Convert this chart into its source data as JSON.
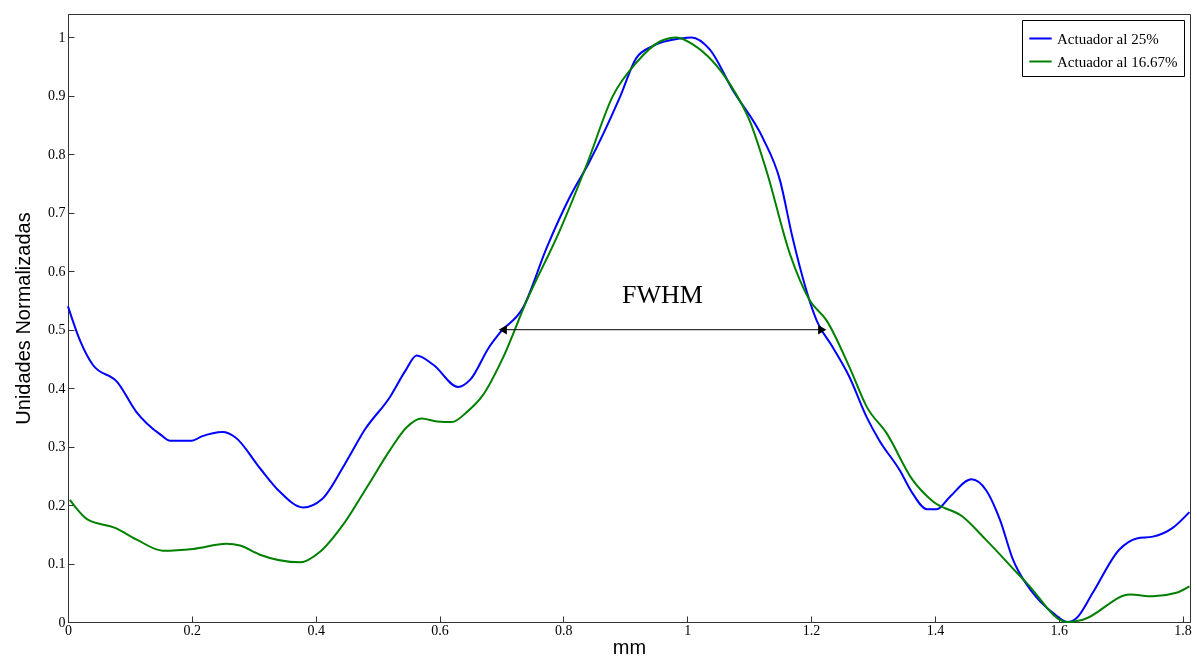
{
  "chart_data": {
    "type": "line",
    "xlabel": "mm",
    "ylabel": "Unidades Normalizadas",
    "annotations": [
      "FWHM"
    ],
    "xlim": [
      0,
      1.812
    ],
    "ylim": [
      0,
      1.04
    ],
    "xticks": [
      0,
      0.2,
      0.4,
      0.6,
      0.8,
      1,
      1.2,
      1.4,
      1.6,
      1.8
    ],
    "yticks": [
      0,
      0.1,
      0.2,
      0.3,
      0.4,
      0.5,
      0.6,
      0.7,
      0.8,
      0.9,
      1
    ],
    "grid": false,
    "legend": "top right",
    "marker": "none",
    "line_style": "solid",
    "series": [
      {
        "name": "Actuador al 25%",
        "color": "#0000ff",
        "x": [
          0,
          0.02,
          0.04,
          0.08,
          0.11,
          0.15,
          0.165,
          0.2,
          0.215,
          0.25,
          0.27,
          0.31,
          0.34,
          0.38,
          0.41,
          0.447,
          0.48,
          0.52,
          0.545,
          0.563,
          0.59,
          0.63,
          0.65,
          0.68,
          0.697,
          0.735,
          0.773,
          0.81,
          0.843,
          0.891,
          0.918,
          0.944,
          0.988,
          1.007,
          1.036,
          1.074,
          1.122,
          1.15,
          1.17,
          1.209,
          1.235,
          1.262,
          1.29,
          1.31,
          1.343,
          1.364,
          1.387,
          1.403,
          1.424,
          1.459,
          1.483,
          1.505,
          1.526,
          1.558,
          1.59,
          1.614,
          1.629,
          1.655,
          1.698,
          1.726,
          1.752,
          1.784,
          1.811
        ],
        "values": [
          0.54,
          0.48,
          0.44,
          0.41,
          0.36,
          0.32,
          0.31,
          0.31,
          0.317,
          0.325,
          0.316,
          0.263,
          0.225,
          0.196,
          0.21,
          0.27,
          0.33,
          0.385,
          0.43,
          0.456,
          0.44,
          0.402,
          0.415,
          0.47,
          0.494,
          0.538,
          0.64,
          0.726,
          0.789,
          0.897,
          0.965,
          0.985,
          0.998,
          1.0,
          0.98,
          0.909,
          0.828,
          0.755,
          0.658,
          0.516,
          0.47,
          0.419,
          0.35,
          0.311,
          0.26,
          0.22,
          0.193,
          0.193,
          0.214,
          0.244,
          0.225,
          0.175,
          0.107,
          0.05,
          0.016,
          0.0,
          0.007,
          0.05,
          0.124,
          0.143,
          0.146,
          0.161,
          0.188
        ]
      },
      {
        "name": "Actuador al 16.67%",
        "color": "#008000",
        "x": [
          0.003,
          0.032,
          0.076,
          0.111,
          0.153,
          0.202,
          0.256,
          0.278,
          0.31,
          0.375,
          0.407,
          0.444,
          0.483,
          0.52,
          0.547,
          0.571,
          0.596,
          0.62,
          0.644,
          0.67,
          0.702,
          0.741,
          0.794,
          0.838,
          0.88,
          0.918,
          0.956,
          0.983,
          1.009,
          1.069,
          1.101,
          1.128,
          1.166,
          1.198,
          1.225,
          1.262,
          1.29,
          1.322,
          1.364,
          1.397,
          1.445,
          1.483,
          1.548,
          1.613,
          1.639,
          1.715,
          1.752,
          1.79,
          1.811
        ],
        "values": [
          0.209,
          0.175,
          0.161,
          0.141,
          0.122,
          0.125,
          0.134,
          0.131,
          0.115,
          0.102,
          0.12,
          0.166,
          0.231,
          0.294,
          0.333,
          0.348,
          0.343,
          0.342,
          0.359,
          0.388,
          0.451,
          0.55,
          0.669,
          0.783,
          0.9,
          0.957,
          0.993,
          1.0,
          0.988,
          0.92,
          0.857,
          0.772,
          0.629,
          0.55,
          0.516,
          0.436,
          0.368,
          0.323,
          0.243,
          0.206,
          0.18,
          0.14,
          0.067,
          0.0,
          0.004,
          0.047,
          0.044,
          0.05,
          0.061
        ]
      }
    ]
  }
}
